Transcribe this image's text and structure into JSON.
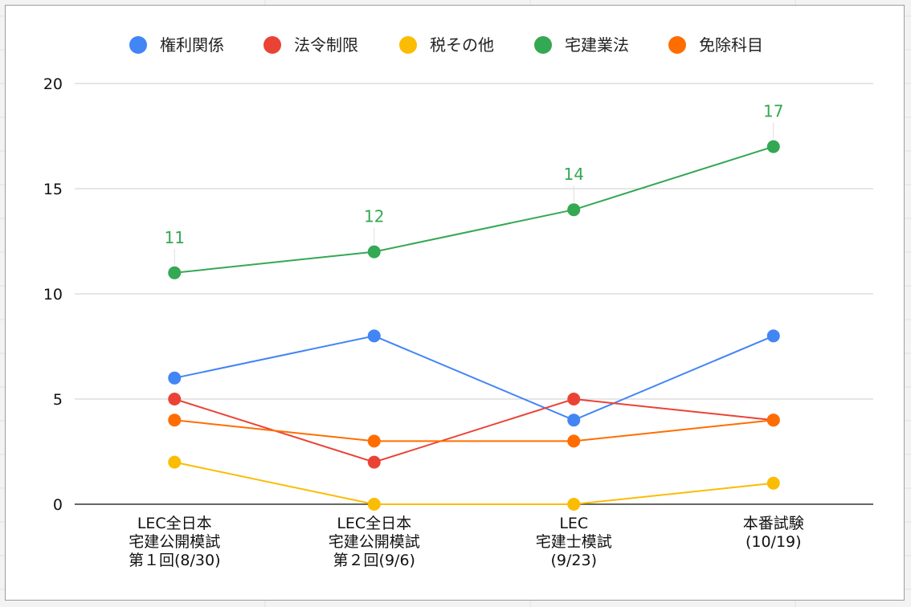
{
  "chart_data": {
    "type": "line",
    "categories": [
      [
        "LEC全日本",
        "宅建公開模試",
        "第１回(8/30)"
      ],
      [
        "LEC全日本",
        "宅建公開模試",
        "第２回(9/6)"
      ],
      [
        "LEC",
        "宅建士模試",
        "(9/23)"
      ],
      [
        "本番試験",
        "(10/19)"
      ]
    ],
    "series": [
      {
        "name": "権利関係",
        "color": "#4285f4",
        "values": [
          6,
          8,
          4,
          8
        ]
      },
      {
        "name": "法令制限",
        "color": "#ea4335",
        "values": [
          5,
          2,
          5,
          4
        ]
      },
      {
        "name": "税その他",
        "color": "#fbbc04",
        "values": [
          2,
          0,
          0,
          1
        ]
      },
      {
        "name": "宅建業法",
        "color": "#34a853",
        "values": [
          11,
          12,
          14,
          17
        ],
        "show_labels": true
      },
      {
        "name": "免除科目",
        "color": "#ff6d01",
        "values": [
          4,
          3,
          3,
          4
        ]
      }
    ],
    "yticks": [
      0,
      5,
      10,
      15,
      20
    ],
    "ylim": [
      0,
      20
    ],
    "grid": true,
    "legend_position": "top"
  }
}
